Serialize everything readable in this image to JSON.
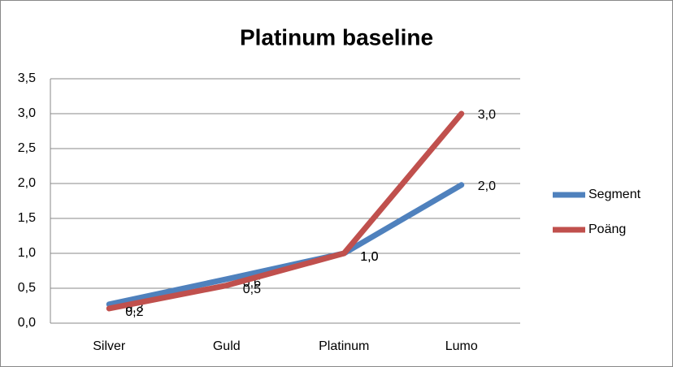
{
  "chart_data": {
    "type": "line",
    "title": "Platinum baseline",
    "categories": [
      "Silver",
      "Guld",
      "Platinum",
      "Lumo"
    ],
    "series": [
      {
        "name": "Segment",
        "color": "#4f81bd",
        "values": [
          0.27,
          0.63,
          1.0,
          1.98
        ],
        "value_labels": [
          "0,3",
          "0,6",
          "1,0",
          "2,0"
        ]
      },
      {
        "name": "Poäng",
        "color": "#c0504d",
        "values": [
          0.21,
          0.54,
          1.0,
          3.0
        ],
        "value_labels": [
          "0,2",
          "0,5",
          "1,0",
          "3,0"
        ]
      }
    ],
    "ylim": [
      0,
      3.5
    ],
    "yticks": [
      {
        "value": 0,
        "label": "0,0"
      },
      {
        "value": 0.5,
        "label": "0,5"
      },
      {
        "value": 1,
        "label": "1,0"
      },
      {
        "value": 1.5,
        "label": "1,5"
      },
      {
        "value": 2,
        "label": "2,0"
      },
      {
        "value": 2.5,
        "label": "2,5"
      },
      {
        "value": 3,
        "label": "3,0"
      },
      {
        "value": 3.5,
        "label": "3,5"
      }
    ],
    "grid": true,
    "legend": "right"
  }
}
